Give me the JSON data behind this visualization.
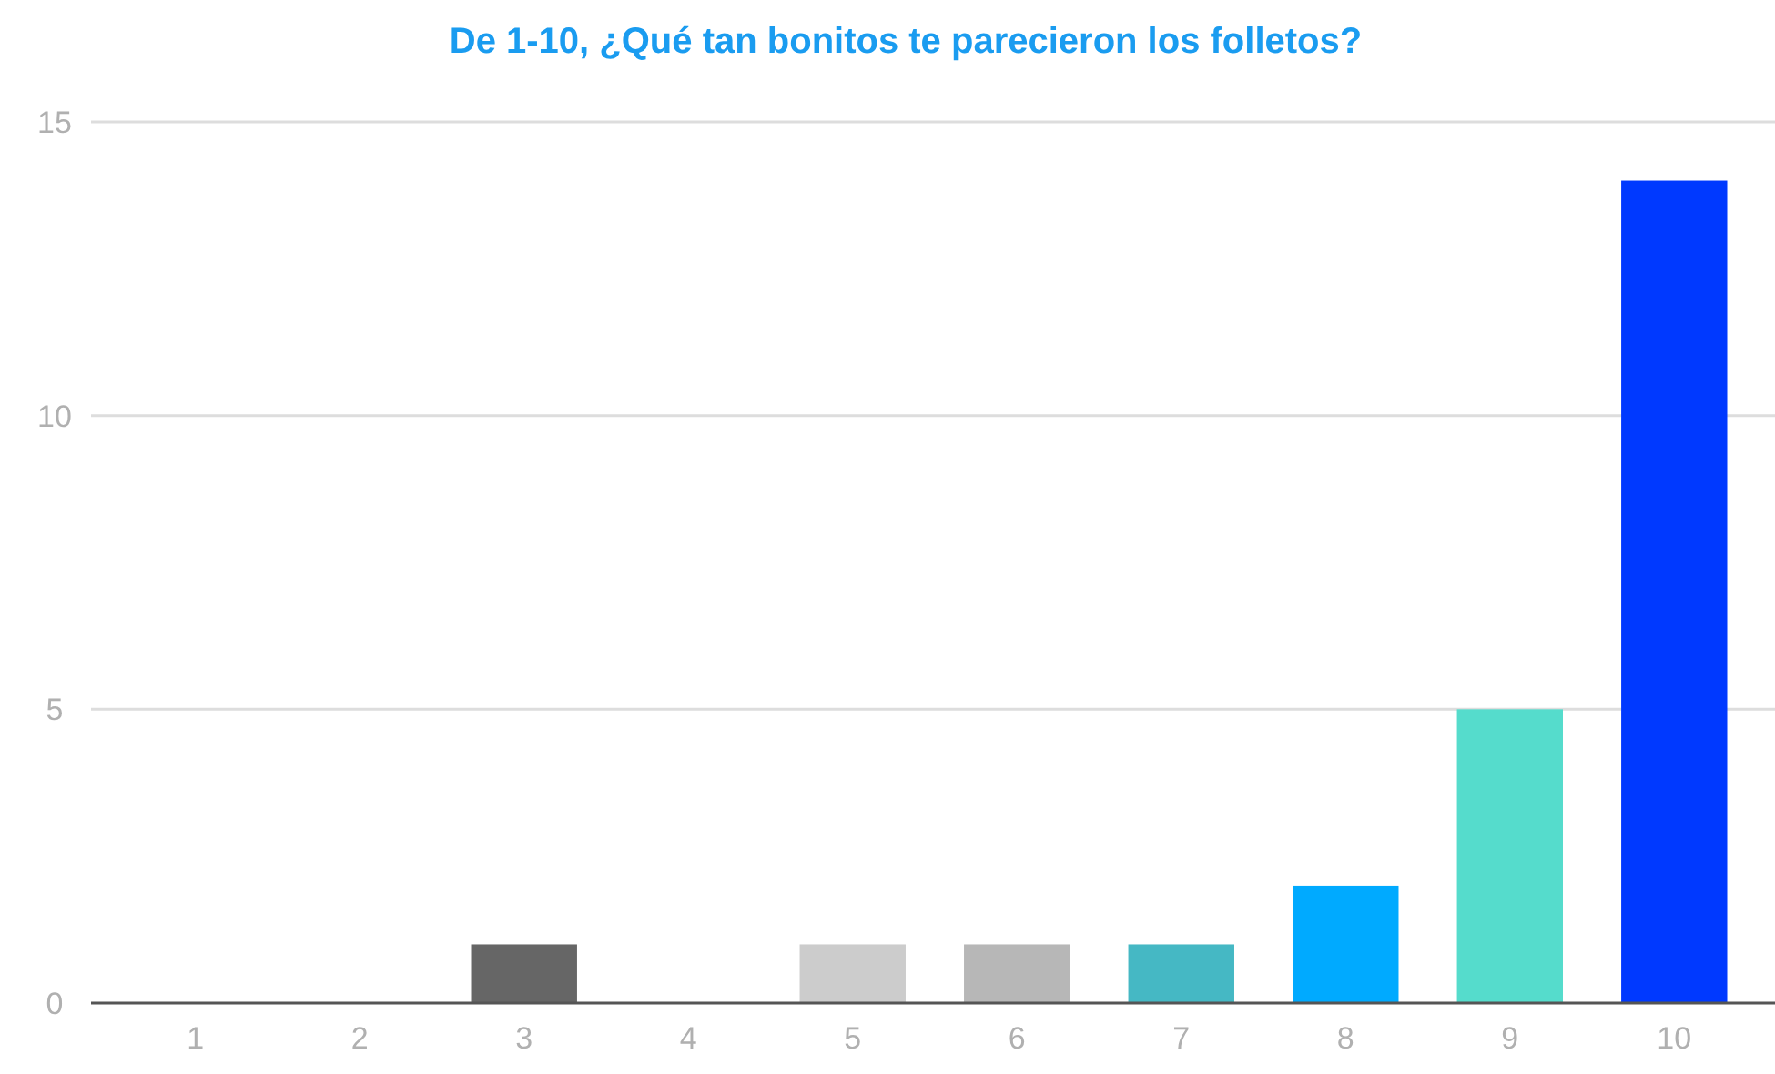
{
  "chart_data": {
    "type": "bar",
    "title": "De 1-10, ¿Qué tan bonitos te parecieron los folletos?",
    "categories": [
      "1",
      "2",
      "3",
      "4",
      "5",
      "6",
      "7",
      "8",
      "9",
      "10"
    ],
    "values": [
      0,
      0,
      1,
      0,
      1,
      1,
      1,
      2,
      5,
      14
    ],
    "colors": [
      "#cccccc",
      "#cccccc",
      "#666666",
      "#cccccc",
      "#cccccc",
      "#b7b7b7",
      "#45b8c4",
      "#00aaff",
      "#55dccc",
      "#0039ff"
    ],
    "ylim": [
      0,
      15
    ],
    "yticks": [
      0,
      5,
      10,
      15
    ],
    "grid": "y"
  }
}
